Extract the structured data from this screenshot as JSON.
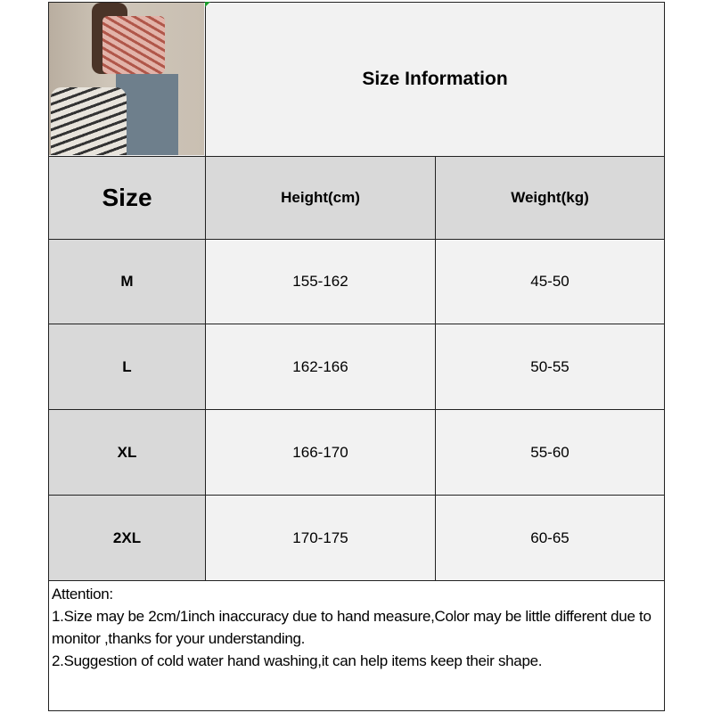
{
  "title": "Size Information",
  "table": {
    "headers": [
      "Size",
      "Height(cm)",
      "Weight(kg)"
    ],
    "rows": [
      {
        "size": "M",
        "height": "155-162",
        "weight": "45-50"
      },
      {
        "size": "L",
        "height": "162-166",
        "weight": "50-55"
      },
      {
        "size": "XL",
        "height": "166-170",
        "weight": "55-60"
      },
      {
        "size": "2XL",
        "height": "170-175",
        "weight": "60-65"
      }
    ]
  },
  "notes": {
    "heading": "Attention:",
    "lines": [
      "1.Size may be 2cm/1inch inaccuracy due to hand measure,Color may be little different due to monitor ,thanks for your understanding.",
      "2.Suggestion of cold water hand washing,it can help items keep their shape."
    ]
  },
  "colors": {
    "header_bg": "#d9d9d9",
    "cell_bg": "#f2f2f2",
    "border": "#222222"
  }
}
